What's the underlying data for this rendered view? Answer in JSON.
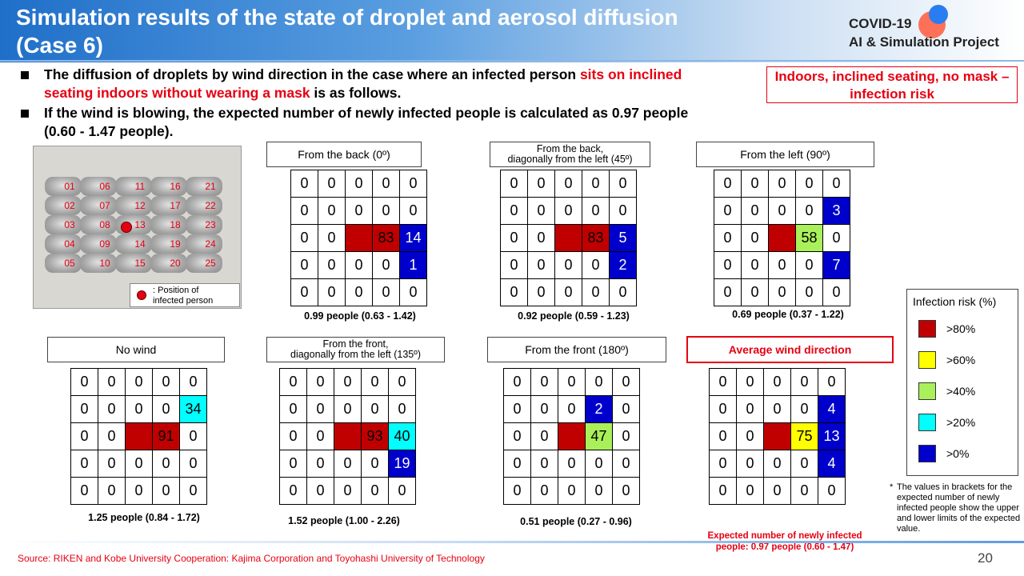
{
  "header": {
    "title_line1": "Simulation results of the state of droplet and aerosol diffusion",
    "title_line2": "(Case 6)",
    "logo_line1": "COVID-19",
    "logo_line2": "AI & Simulation Project"
  },
  "bullets": {
    "b1_part1": "The diffusion of droplets by wind direction in the case where an infected person ",
    "b1_red": "sits on inclined seating indoors without wearing a mask",
    "b1_part2": " is as follows.",
    "b2": "If the wind is blowing, the expected number of newly infected people is calculated as 0.97 people (0.60 - 1.47 people)."
  },
  "risk_box": "Indoors, inclined seating, no mask – infection risk",
  "seating": {
    "seat_numbers": [
      "01",
      "06",
      "11",
      "16",
      "21",
      "02",
      "07",
      "12",
      "17",
      "22",
      "03",
      "08",
      "13",
      "18",
      "23",
      "04",
      "09",
      "14",
      "19",
      "24",
      "05",
      "10",
      "15",
      "20",
      "25"
    ],
    "legend_line1": ": Position of",
    "legend_line2": "infected person"
  },
  "cases": [
    {
      "label": "From the back (0º)",
      "expect": "0.99 people (0.63 - 1.42)",
      "grid": [
        [
          "0",
          "0",
          "0",
          "0",
          "0"
        ],
        [
          "0",
          "0",
          "0",
          "0",
          "0"
        ],
        [
          "0",
          "0",
          "",
          "83",
          "14"
        ],
        [
          "0",
          "0",
          "0",
          "0",
          "1"
        ],
        [
          "0",
          "0",
          "0",
          "0",
          "0"
        ]
      ],
      "colors": [
        [
          "",
          "",
          "",
          "",
          ""
        ],
        [
          "",
          "",
          "",
          "",
          ""
        ],
        [
          "",
          "",
          "red",
          "red",
          "blue"
        ],
        [
          "",
          "",
          "",
          "",
          "blue"
        ],
        [
          "",
          "",
          "",
          "",
          ""
        ]
      ]
    },
    {
      "label": "From the back, diagonally from the left (45º)",
      "label_l1": "From the back,",
      "label_l2": "diagonally from the left (45º)",
      "expect": "0.92 people (0.59 - 1.23)",
      "grid": [
        [
          "0",
          "0",
          "0",
          "0",
          "0"
        ],
        [
          "0",
          "0",
          "0",
          "0",
          "0"
        ],
        [
          "0",
          "0",
          "",
          "83",
          "5"
        ],
        [
          "0",
          "0",
          "0",
          "0",
          "2"
        ],
        [
          "0",
          "0",
          "0",
          "0",
          "0"
        ]
      ],
      "colors": [
        [
          "",
          "",
          "",
          "",
          ""
        ],
        [
          "",
          "",
          "",
          "",
          ""
        ],
        [
          "",
          "",
          "red",
          "red",
          "blue"
        ],
        [
          "",
          "",
          "",
          "",
          "blue"
        ],
        [
          "",
          "",
          "",
          "",
          ""
        ]
      ]
    },
    {
      "label": "From the left (90º)",
      "expect": "0.69 people (0.37 - 1.22)",
      "grid": [
        [
          "0",
          "0",
          "0",
          "0",
          "0"
        ],
        [
          "0",
          "0",
          "0",
          "0",
          "3"
        ],
        [
          "0",
          "0",
          "",
          "58",
          "0"
        ],
        [
          "0",
          "0",
          "0",
          "0",
          "7"
        ],
        [
          "0",
          "0",
          "0",
          "0",
          "0"
        ]
      ],
      "colors": [
        [
          "",
          "",
          "",
          "",
          ""
        ],
        [
          "",
          "",
          "",
          "",
          "blue"
        ],
        [
          "",
          "",
          "red",
          "green",
          ""
        ],
        [
          "",
          "",
          "",
          "",
          "blue"
        ],
        [
          "",
          "",
          "",
          "",
          ""
        ]
      ]
    },
    {
      "label": "No wind",
      "expect": "1.25 people (0.84 - 1.72)",
      "grid": [
        [
          "0",
          "0",
          "0",
          "0",
          "0"
        ],
        [
          "0",
          "0",
          "0",
          "0",
          "34"
        ],
        [
          "0",
          "0",
          "",
          "91",
          "0"
        ],
        [
          "0",
          "0",
          "0",
          "0",
          "0"
        ],
        [
          "0",
          "0",
          "0",
          "0",
          "0"
        ]
      ],
      "colors": [
        [
          "",
          "",
          "",
          "",
          ""
        ],
        [
          "",
          "",
          "",
          "",
          "cyan"
        ],
        [
          "",
          "",
          "red",
          "red",
          ""
        ],
        [
          "",
          "",
          "",
          "",
          ""
        ],
        [
          "",
          "",
          "",
          "",
          ""
        ]
      ]
    },
    {
      "label": "From the front, diagonally from the left (135º)",
      "label_l1": "From the front,",
      "label_l2": "diagonally from the left (135º)",
      "expect": "1.52 people (1.00 - 2.26)",
      "grid": [
        [
          "0",
          "0",
          "0",
          "0",
          "0"
        ],
        [
          "0",
          "0",
          "0",
          "0",
          "0"
        ],
        [
          "0",
          "0",
          "",
          "93",
          "40"
        ],
        [
          "0",
          "0",
          "0",
          "0",
          "19"
        ],
        [
          "0",
          "0",
          "0",
          "0",
          "0"
        ]
      ],
      "colors": [
        [
          "",
          "",
          "",
          "",
          ""
        ],
        [
          "",
          "",
          "",
          "",
          ""
        ],
        [
          "",
          "",
          "red",
          "red",
          "cyan"
        ],
        [
          "",
          "",
          "",
          "",
          "blue"
        ],
        [
          "",
          "",
          "",
          "",
          ""
        ]
      ]
    },
    {
      "label": "From the front (180º)",
      "expect": "0.51 people (0.27 - 0.96)",
      "grid": [
        [
          "0",
          "0",
          "0",
          "0",
          "0"
        ],
        [
          "0",
          "0",
          "0",
          "2",
          "0"
        ],
        [
          "0",
          "0",
          "",
          "47",
          "0"
        ],
        [
          "0",
          "0",
          "0",
          "0",
          "0"
        ],
        [
          "0",
          "0",
          "0",
          "0",
          "0"
        ]
      ],
      "colors": [
        [
          "",
          "",
          "",
          "",
          ""
        ],
        [
          "",
          "",
          "",
          "blue",
          ""
        ],
        [
          "",
          "",
          "red",
          "green",
          ""
        ],
        [
          "",
          "",
          "",
          "",
          ""
        ],
        [
          "",
          "",
          "",
          "",
          ""
        ]
      ]
    },
    {
      "label": "Average wind direction",
      "expect_l1": "Expected number of newly infected",
      "expect_l2": "people: 0.97 people (0.60 - 1.47)",
      "grid": [
        [
          "0",
          "0",
          "0",
          "0",
          "0"
        ],
        [
          "0",
          "0",
          "0",
          "0",
          "4"
        ],
        [
          "0",
          "0",
          "",
          "75",
          "13"
        ],
        [
          "0",
          "0",
          "0",
          "0",
          "4"
        ],
        [
          "0",
          "0",
          "0",
          "0",
          "0"
        ]
      ],
      "colors": [
        [
          "",
          "",
          "",
          "",
          ""
        ],
        [
          "",
          "",
          "",
          "",
          "blue"
        ],
        [
          "",
          "",
          "red",
          "yellow",
          "blue"
        ],
        [
          "",
          "",
          "",
          "",
          "blue"
        ],
        [
          "",
          "",
          "",
          "",
          ""
        ]
      ]
    }
  ],
  "legend": {
    "title": "Infection risk (%)",
    "items": [
      {
        "label": ">80%",
        "color": "#c00000"
      },
      {
        "label": ">60%",
        "color": "#ffff00"
      },
      {
        "label": ">40%",
        "color": "#a9f05a"
      },
      {
        "label": ">20%",
        "color": "#00ffff"
      },
      {
        "label": ">0%",
        "color": "#0000cc"
      }
    ]
  },
  "footnote_star": "*",
  "footnote": "The values in brackets for the expected number of newly infected people show the upper and lower limits of the expected value.",
  "source": "Source: RIKEN and Kobe University Cooperation: Kajima Corporation and Toyohashi University of Technology",
  "page_number": "20"
}
